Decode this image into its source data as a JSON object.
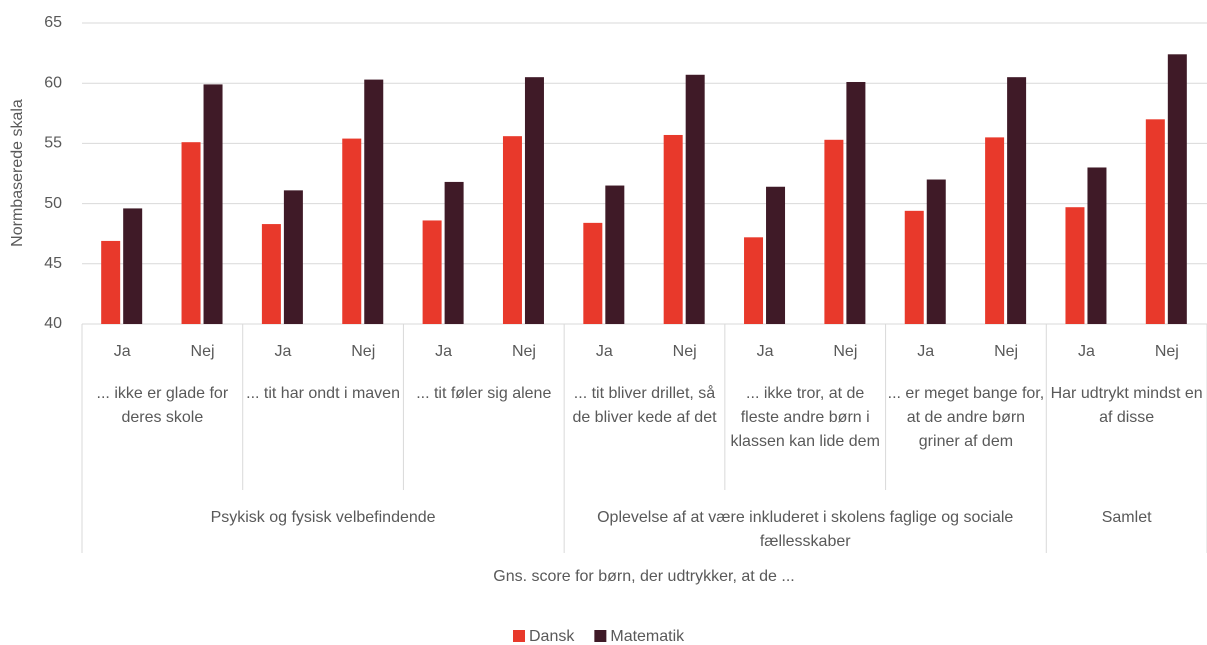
{
  "chart_data": {
    "type": "bar",
    "y_axis_title": "Normbaserede skala",
    "x_axis_title": "Gns. score for børn, der udtrykker, at de ...",
    "ylim": [
      40,
      65
    ],
    "yticks": [
      40,
      45,
      50,
      55,
      60,
      65
    ],
    "grid": true,
    "legend": "bottom",
    "groups": [
      {
        "label": "Psykisk og fysisk velbefindende",
        "subgroups": [
          {
            "label": "... ikke er glade for deres skole",
            "categories": [
              "Ja",
              "Nej"
            ]
          },
          {
            "label": "... tit har ondt i maven",
            "categories": [
              "Ja",
              "Nej"
            ]
          },
          {
            "label": "... tit føler sig alene",
            "categories": [
              "Ja",
              "Nej"
            ]
          }
        ]
      },
      {
        "label": "Oplevelse af at være inkluderet i skolens faglige og sociale fællesskaber",
        "subgroups": [
          {
            "label": "... tit bliver drillet, så de bliver kede af det",
            "categories": [
              "Ja",
              "Nej"
            ]
          },
          {
            "label": "... ikke tror, at de fleste andre børn i klassen kan lide dem",
            "categories": [
              "Ja",
              "Nej"
            ]
          },
          {
            "label": "... er meget bange for, at de andre børn griner af dem",
            "categories": [
              "Ja",
              "Nej"
            ]
          }
        ]
      },
      {
        "label": "Samlet",
        "subgroups": [
          {
            "label": "Har udtrykt mindst en af disse",
            "categories": [
              "Ja",
              "Nej"
            ]
          }
        ]
      }
    ],
    "series": [
      {
        "name": "Dansk",
        "color": "#e8392b",
        "values": [
          46.9,
          55.1,
          48.3,
          55.4,
          48.6,
          55.6,
          48.4,
          55.7,
          47.2,
          55.3,
          49.4,
          55.5,
          49.7,
          57.0
        ]
      },
      {
        "name": "Matematik",
        "color": "#3f1a27",
        "values": [
          49.6,
          59.9,
          51.1,
          60.3,
          51.8,
          60.5,
          51.5,
          60.7,
          51.4,
          60.1,
          52.0,
          60.5,
          53.0,
          62.4
        ]
      }
    ]
  }
}
